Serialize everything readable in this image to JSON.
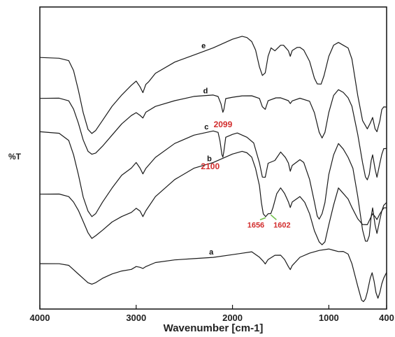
{
  "chart_data": {
    "type": "line",
    "xlabel": "Wavenumber [cm-1]",
    "ylabel": "%T",
    "xlim": [
      4000,
      400
    ],
    "x_reversed": true,
    "x_ticks": [
      "4000",
      "3000",
      "2000",
      "1000",
      "400"
    ],
    "x_tick_values": [
      4000,
      3000,
      2000,
      1000,
      400
    ],
    "grid": false,
    "legend": "none",
    "line_color": "#1a1a1a",
    "annotation_color": "#d22d2d",
    "arrow_color": "#6fbf4a",
    "ylim": [
      0,
      100
    ],
    "series": [
      {
        "name": "e",
        "points": [
          [
            4000,
            89.5
          ],
          [
            3800,
            89.3
          ],
          [
            3700,
            88.5
          ],
          [
            3650,
            85
          ],
          [
            3600,
            78
          ],
          [
            3550,
            70
          ],
          [
            3500,
            64
          ],
          [
            3460,
            62.5
          ],
          [
            3420,
            63.5
          ],
          [
            3350,
            67
          ],
          [
            3250,
            72
          ],
          [
            3150,
            76
          ],
          [
            3050,
            79.5
          ],
          [
            3000,
            81
          ],
          [
            2960,
            79
          ],
          [
            2930,
            77
          ],
          [
            2900,
            80
          ],
          [
            2870,
            81
          ],
          [
            2800,
            84
          ],
          [
            2600,
            88
          ],
          [
            2400,
            90.5
          ],
          [
            2200,
            93
          ],
          [
            2000,
            96
          ],
          [
            1900,
            97
          ],
          [
            1850,
            96.5
          ],
          [
            1800,
            95
          ],
          [
            1760,
            92
          ],
          [
            1720,
            86
          ],
          [
            1690,
            83
          ],
          [
            1660,
            84
          ],
          [
            1630,
            90
          ],
          [
            1600,
            93
          ],
          [
            1560,
            92
          ],
          [
            1500,
            94
          ],
          [
            1470,
            94
          ],
          [
            1420,
            92
          ],
          [
            1400,
            90
          ],
          [
            1380,
            92
          ],
          [
            1330,
            93
          ],
          [
            1300,
            93
          ],
          [
            1260,
            92
          ],
          [
            1200,
            88
          ],
          [
            1150,
            82
          ],
          [
            1120,
            80
          ],
          [
            1080,
            80
          ],
          [
            1050,
            83
          ],
          [
            1000,
            90
          ],
          [
            950,
            94
          ],
          [
            900,
            95
          ],
          [
            850,
            94
          ],
          [
            800,
            93
          ],
          [
            760,
            89
          ],
          [
            700,
            76
          ],
          [
            650,
            67
          ],
          [
            600,
            64
          ],
          [
            570,
            66
          ],
          [
            545,
            68
          ],
          [
            520,
            64
          ],
          [
            500,
            63
          ],
          [
            470,
            67
          ],
          [
            450,
            71
          ],
          [
            430,
            72
          ],
          [
            400,
            72
          ]
        ]
      },
      {
        "name": "d",
        "points": [
          [
            4000,
            75
          ],
          [
            3800,
            75
          ],
          [
            3700,
            74
          ],
          [
            3650,
            71
          ],
          [
            3600,
            66
          ],
          [
            3550,
            60
          ],
          [
            3500,
            56
          ],
          [
            3460,
            55
          ],
          [
            3420,
            55.5
          ],
          [
            3350,
            58
          ],
          [
            3250,
            62
          ],
          [
            3150,
            66
          ],
          [
            3050,
            69
          ],
          [
            3000,
            70
          ],
          [
            2960,
            69
          ],
          [
            2930,
            68
          ],
          [
            2900,
            70
          ],
          [
            2800,
            72
          ],
          [
            2600,
            74
          ],
          [
            2400,
            75.5
          ],
          [
            2200,
            76
          ],
          [
            2150,
            75.5
          ],
          [
            2120,
            73
          ],
          [
            2100,
            70
          ],
          [
            2090,
            71
          ],
          [
            2070,
            75
          ],
          [
            2000,
            75.5
          ],
          [
            1900,
            76
          ],
          [
            1800,
            76
          ],
          [
            1720,
            75
          ],
          [
            1690,
            72
          ],
          [
            1660,
            71
          ],
          [
            1630,
            74
          ],
          [
            1550,
            75
          ],
          [
            1500,
            75
          ],
          [
            1420,
            74
          ],
          [
            1400,
            73
          ],
          [
            1380,
            74
          ],
          [
            1300,
            75
          ],
          [
            1200,
            74
          ],
          [
            1150,
            70
          ],
          [
            1100,
            63
          ],
          [
            1070,
            61
          ],
          [
            1040,
            63
          ],
          [
            1000,
            70
          ],
          [
            950,
            76
          ],
          [
            900,
            78
          ],
          [
            850,
            77
          ],
          [
            800,
            75
          ],
          [
            760,
            72
          ],
          [
            700,
            62
          ],
          [
            650,
            52
          ],
          [
            620,
            47
          ],
          [
            600,
            46
          ],
          [
            580,
            48
          ],
          [
            560,
            53
          ],
          [
            545,
            55
          ],
          [
            520,
            50
          ],
          [
            500,
            47
          ],
          [
            470,
            52
          ],
          [
            450,
            55
          ],
          [
            430,
            57
          ],
          [
            400,
            57
          ]
        ]
      },
      {
        "name": "c",
        "points": [
          [
            4000,
            63
          ],
          [
            3800,
            62.5
          ],
          [
            3700,
            60
          ],
          [
            3650,
            55
          ],
          [
            3600,
            48
          ],
          [
            3550,
            40
          ],
          [
            3500,
            35
          ],
          [
            3460,
            33
          ],
          [
            3420,
            34
          ],
          [
            3350,
            38
          ],
          [
            3250,
            43
          ],
          [
            3150,
            47.5
          ],
          [
            3050,
            50
          ],
          [
            3000,
            52
          ],
          [
            2960,
            50
          ],
          [
            2930,
            48
          ],
          [
            2900,
            50
          ],
          [
            2800,
            54
          ],
          [
            2600,
            59
          ],
          [
            2400,
            62
          ],
          [
            2200,
            63.5
          ],
          [
            2150,
            63
          ],
          [
            2130,
            60
          ],
          [
            2110,
            55
          ],
          [
            2100,
            54
          ],
          [
            2090,
            56
          ],
          [
            2070,
            61
          ],
          [
            2000,
            62
          ],
          [
            1950,
            62.5
          ],
          [
            1850,
            61
          ],
          [
            1780,
            59
          ],
          [
            1720,
            52
          ],
          [
            1690,
            47
          ],
          [
            1660,
            47
          ],
          [
            1630,
            52
          ],
          [
            1560,
            53
          ],
          [
            1500,
            56
          ],
          [
            1450,
            54
          ],
          [
            1420,
            52
          ],
          [
            1400,
            49
          ],
          [
            1380,
            51
          ],
          [
            1300,
            53
          ],
          [
            1260,
            52
          ],
          [
            1200,
            46
          ],
          [
            1150,
            38
          ],
          [
            1120,
            33
          ],
          [
            1100,
            32
          ],
          [
            1070,
            34
          ],
          [
            1040,
            38
          ],
          [
            1000,
            48
          ],
          [
            950,
            55
          ],
          [
            900,
            59
          ],
          [
            850,
            57
          ],
          [
            800,
            54
          ],
          [
            750,
            50
          ],
          [
            700,
            40
          ],
          [
            650,
            28
          ],
          [
            620,
            24
          ],
          [
            600,
            24
          ],
          [
            580,
            26
          ],
          [
            560,
            33
          ],
          [
            545,
            36
          ],
          [
            520,
            30
          ],
          [
            500,
            27
          ],
          [
            470,
            32
          ],
          [
            450,
            35
          ],
          [
            430,
            37
          ],
          [
            400,
            38
          ]
        ]
      },
      {
        "name": "b",
        "points": [
          [
            4000,
            41
          ],
          [
            3800,
            41
          ],
          [
            3700,
            40
          ],
          [
            3650,
            38
          ],
          [
            3600,
            35
          ],
          [
            3550,
            31
          ],
          [
            3500,
            27
          ],
          [
            3460,
            25
          ],
          [
            3420,
            26
          ],
          [
            3350,
            28
          ],
          [
            3250,
            31
          ],
          [
            3150,
            33
          ],
          [
            3050,
            34.5
          ],
          [
            3000,
            36
          ],
          [
            2960,
            35
          ],
          [
            2930,
            33
          ],
          [
            2900,
            35
          ],
          [
            2800,
            40
          ],
          [
            2600,
            46
          ],
          [
            2400,
            50
          ],
          [
            2200,
            52
          ],
          [
            2000,
            55
          ],
          [
            1900,
            56
          ],
          [
            1850,
            55.5
          ],
          [
            1800,
            54
          ],
          [
            1760,
            50
          ],
          [
            1720,
            44
          ],
          [
            1700,
            38
          ],
          [
            1680,
            34
          ],
          [
            1656,
            33
          ],
          [
            1630,
            34
          ],
          [
            1602,
            34
          ],
          [
            1580,
            36
          ],
          [
            1540,
            41
          ],
          [
            1500,
            43
          ],
          [
            1460,
            41
          ],
          [
            1420,
            38
          ],
          [
            1400,
            36
          ],
          [
            1380,
            38
          ],
          [
            1300,
            40
          ],
          [
            1250,
            38
          ],
          [
            1200,
            34
          ],
          [
            1150,
            28
          ],
          [
            1100,
            24
          ],
          [
            1070,
            23
          ],
          [
            1040,
            24
          ],
          [
            1000,
            30
          ],
          [
            950,
            37
          ],
          [
            900,
            43
          ],
          [
            850,
            41
          ],
          [
            800,
            39
          ],
          [
            760,
            36
          ],
          [
            700,
            32
          ],
          [
            650,
            30
          ],
          [
            600,
            30
          ],
          [
            560,
            33
          ],
          [
            545,
            34
          ],
          [
            520,
            33
          ],
          [
            500,
            32
          ],
          [
            470,
            34
          ],
          [
            450,
            35
          ],
          [
            430,
            36
          ],
          [
            400,
            36
          ]
        ]
      },
      {
        "name": "a",
        "points": [
          [
            4000,
            16
          ],
          [
            3800,
            16
          ],
          [
            3700,
            15.5
          ],
          [
            3650,
            14
          ],
          [
            3600,
            12.5
          ],
          [
            3550,
            11
          ],
          [
            3500,
            9.5
          ],
          [
            3460,
            9
          ],
          [
            3420,
            9.5
          ],
          [
            3350,
            11
          ],
          [
            3250,
            12.5
          ],
          [
            3150,
            13.5
          ],
          [
            3050,
            14
          ],
          [
            3000,
            15
          ],
          [
            2960,
            14.7
          ],
          [
            2930,
            14.3
          ],
          [
            2900,
            15
          ],
          [
            2800,
            16.5
          ],
          [
            2600,
            17.5
          ],
          [
            2400,
            18
          ],
          [
            2200,
            18.5
          ],
          [
            2000,
            19.5
          ],
          [
            1900,
            20
          ],
          [
            1800,
            20.5
          ],
          [
            1720,
            18.5
          ],
          [
            1680,
            17
          ],
          [
            1660,
            16
          ],
          [
            1630,
            17.5
          ],
          [
            1560,
            19
          ],
          [
            1500,
            19
          ],
          [
            1460,
            17.5
          ],
          [
            1420,
            15
          ],
          [
            1400,
            14
          ],
          [
            1380,
            15.5
          ],
          [
            1300,
            18.5
          ],
          [
            1200,
            20
          ],
          [
            1100,
            21
          ],
          [
            1000,
            21.5
          ],
          [
            950,
            21
          ],
          [
            900,
            20.5
          ],
          [
            850,
            20.5
          ],
          [
            800,
            19.5
          ],
          [
            760,
            16
          ],
          [
            700,
            8
          ],
          [
            660,
            3
          ],
          [
            640,
            2.5
          ],
          [
            620,
            3.5
          ],
          [
            600,
            6
          ],
          [
            570,
            11
          ],
          [
            550,
            13
          ],
          [
            530,
            10
          ],
          [
            510,
            6
          ],
          [
            490,
            4
          ],
          [
            470,
            6
          ],
          [
            450,
            9
          ],
          [
            430,
            11
          ],
          [
            400,
            13
          ]
        ]
      }
    ],
    "annotations": [
      {
        "text": "2099",
        "x": 2099,
        "series": "d"
      },
      {
        "text": "2100",
        "x": 2100,
        "series": "c"
      },
      {
        "text": "1656",
        "x": 1656,
        "series": "b"
      },
      {
        "text": "1602",
        "x": 1602,
        "series": "b"
      }
    ]
  }
}
